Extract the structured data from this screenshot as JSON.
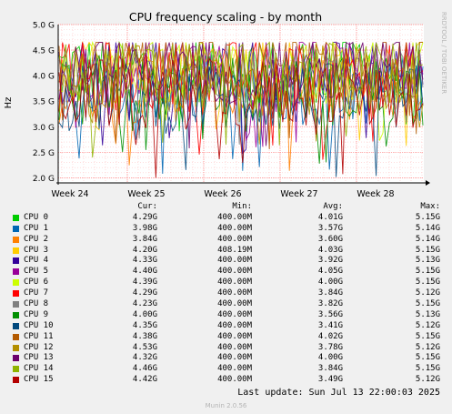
{
  "chart_data": {
    "type": "line",
    "title": "CPU frequency scaling - by month",
    "ylabel": "Hz",
    "side_label": "RRDTOOL / TOBI OETIKER",
    "yticks": [
      "2.0 G",
      "2.5 G",
      "3.0 G",
      "3.5 G",
      "4.0 G",
      "4.5 G",
      "5.0 G"
    ],
    "ylim": [
      1.9,
      5.0
    ],
    "week_labels": [
      "Week 24",
      "Week 25",
      "Week 26",
      "Week 27",
      "Week 28"
    ],
    "grid": true,
    "legend_headers": {
      "cur": "Cur:",
      "min": "Min:",
      "avg": "Avg:",
      "max": "Max:"
    },
    "series": [
      {
        "name": "CPU  0",
        "color": "#00cc00",
        "cur": "4.29G",
        "min": "400.00M",
        "avg": "4.01G",
        "max": "5.15G"
      },
      {
        "name": "CPU  1",
        "color": "#0066b3",
        "cur": "3.98G",
        "min": "400.00M",
        "avg": "3.57G",
        "max": "5.14G"
      },
      {
        "name": "CPU  2",
        "color": "#ff8000",
        "cur": "3.84G",
        "min": "400.00M",
        "avg": "3.60G",
        "max": "5.14G"
      },
      {
        "name": "CPU  3",
        "color": "#ffcc00",
        "cur": "4.20G",
        "min": "408.19M",
        "avg": "4.03G",
        "max": "5.15G"
      },
      {
        "name": "CPU  4",
        "color": "#330099",
        "cur": "4.33G",
        "min": "400.00M",
        "avg": "3.92G",
        "max": "5.13G"
      },
      {
        "name": "CPU  5",
        "color": "#990099",
        "cur": "4.40G",
        "min": "400.00M",
        "avg": "4.05G",
        "max": "5.15G"
      },
      {
        "name": "CPU  6",
        "color": "#ccff00",
        "cur": "4.39G",
        "min": "400.00M",
        "avg": "4.00G",
        "max": "5.15G"
      },
      {
        "name": "CPU  7",
        "color": "#ff0000",
        "cur": "4.29G",
        "min": "400.00M",
        "avg": "3.84G",
        "max": "5.12G"
      },
      {
        "name": "CPU  8",
        "color": "#808080",
        "cur": "4.23G",
        "min": "400.00M",
        "avg": "3.82G",
        "max": "5.15G"
      },
      {
        "name": "CPU  9",
        "color": "#008f00",
        "cur": "4.00G",
        "min": "400.00M",
        "avg": "3.56G",
        "max": "5.13G"
      },
      {
        "name": "CPU 10",
        "color": "#00487d",
        "cur": "4.35G",
        "min": "400.00M",
        "avg": "3.41G",
        "max": "5.12G"
      },
      {
        "name": "CPU 11",
        "color": "#b35a00",
        "cur": "4.38G",
        "min": "400.00M",
        "avg": "4.02G",
        "max": "5.15G"
      },
      {
        "name": "CPU 12",
        "color": "#b38f00",
        "cur": "4.53G",
        "min": "400.00M",
        "avg": "3.78G",
        "max": "5.12G"
      },
      {
        "name": "CPU 13",
        "color": "#6b006b",
        "cur": "4.32G",
        "min": "400.00M",
        "avg": "4.00G",
        "max": "5.15G"
      },
      {
        "name": "CPU 14",
        "color": "#8fb300",
        "cur": "4.46G",
        "min": "400.00M",
        "avg": "3.84G",
        "max": "5.15G"
      },
      {
        "name": "CPU 15",
        "color": "#b30000",
        "cur": "4.42G",
        "min": "400.00M",
        "avg": "3.49G",
        "max": "5.12G"
      }
    ]
  },
  "footer": {
    "last_update": "Last update: Sun Jul 13 22:00:03 2025",
    "munin": "Munin 2.0.56"
  }
}
